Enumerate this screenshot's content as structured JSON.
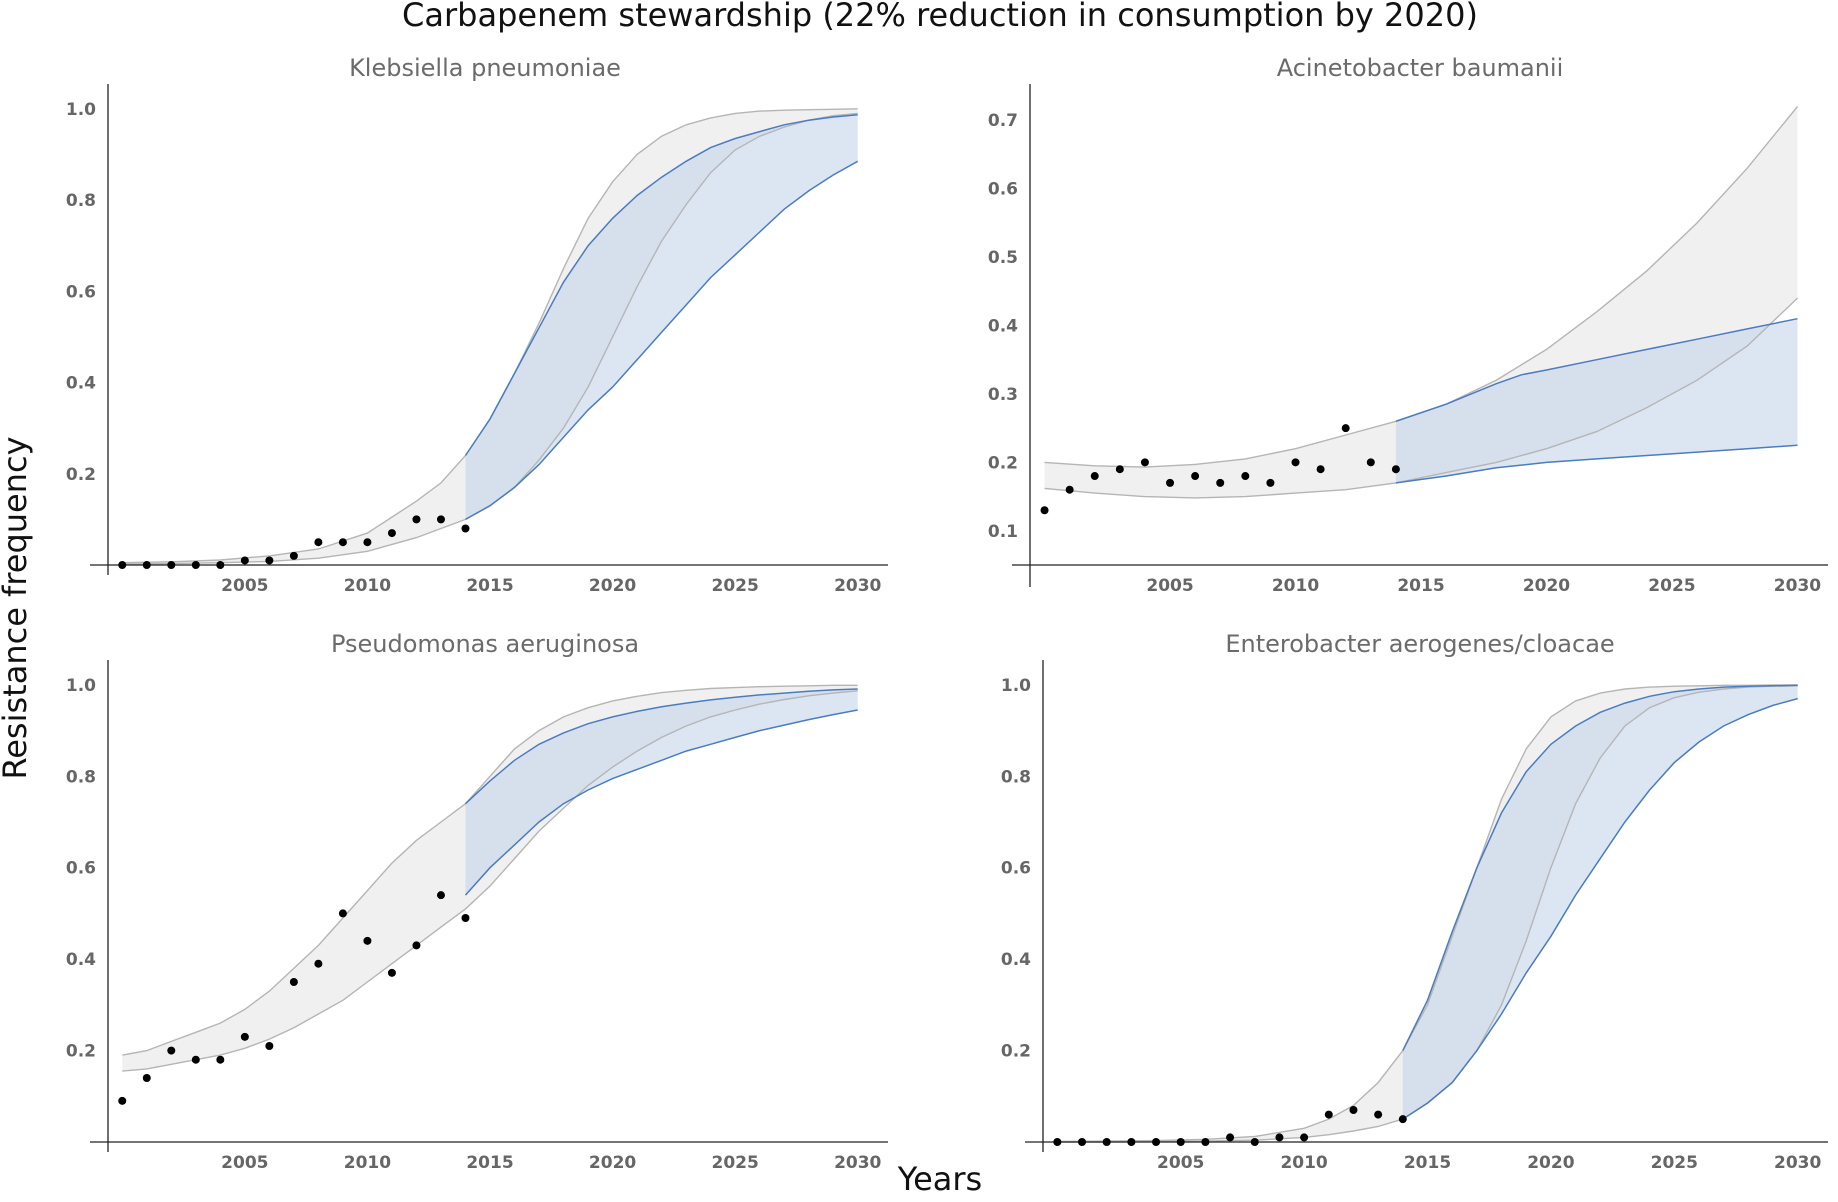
{
  "figure": {
    "title": "Carbapenem stewardship (22% reduction in consumption by 2020)",
    "xlabel": "Years",
    "ylabel": "Resistance frequency"
  },
  "colors": {
    "historical_band_fill": "#f0f0f0",
    "historical_band_line": "#b5b5b5",
    "projection_band_fill": "#c5d5ea",
    "projection_band_line": "#4a7cc0",
    "points": "#000000"
  },
  "chart_data": [
    {
      "type": "line",
      "title": "Klebsiella pneumoniae",
      "xlim": [
        1999.5,
        2030.5
      ],
      "ylim": [
        0,
        1.05
      ],
      "x_ticks": [
        2005,
        2010,
        2015,
        2020,
        2025,
        2030
      ],
      "y_ticks": [
        0.2,
        0.4,
        0.6,
        0.8,
        1.0
      ],
      "observed": {
        "x": [
          2000,
          2001,
          2002,
          2003,
          2004,
          2005,
          2006,
          2007,
          2008,
          2009,
          2010,
          2011,
          2012,
          2013,
          2014
        ],
        "y": [
          0.0,
          0.0,
          0.0,
          0.0,
          0.0,
          0.01,
          0.01,
          0.02,
          0.05,
          0.05,
          0.05,
          0.07,
          0.1,
          0.1,
          0.08
        ]
      },
      "band_without_intervention": {
        "x": [
          2000,
          2002,
          2004,
          2006,
          2008,
          2010,
          2012,
          2013,
          2014,
          2015,
          2016,
          2017,
          2018,
          2019,
          2020,
          2021,
          2022,
          2023,
          2024,
          2025,
          2026,
          2027,
          2028,
          2029,
          2030
        ],
        "upper": [
          0.005,
          0.007,
          0.011,
          0.02,
          0.035,
          0.07,
          0.14,
          0.18,
          0.24,
          0.32,
          0.42,
          0.53,
          0.65,
          0.76,
          0.84,
          0.9,
          0.94,
          0.965,
          0.98,
          0.99,
          0.995,
          0.997,
          0.998,
          0.999,
          1.0
        ],
        "lower": [
          0.002,
          0.003,
          0.005,
          0.008,
          0.015,
          0.03,
          0.06,
          0.08,
          0.1,
          0.13,
          0.17,
          0.23,
          0.3,
          0.39,
          0.5,
          0.61,
          0.71,
          0.79,
          0.86,
          0.91,
          0.94,
          0.96,
          0.975,
          0.985,
          0.99
        ]
      },
      "band_with_intervention": {
        "x": [
          2014,
          2015,
          2016,
          2017,
          2018,
          2019,
          2020,
          2021,
          2022,
          2023,
          2024,
          2025,
          2026,
          2027,
          2028,
          2029,
          2030
        ],
        "upper": [
          0.24,
          0.32,
          0.42,
          0.52,
          0.62,
          0.7,
          0.76,
          0.81,
          0.85,
          0.885,
          0.915,
          0.935,
          0.95,
          0.965,
          0.975,
          0.982,
          0.987
        ],
        "lower": [
          0.1,
          0.13,
          0.17,
          0.22,
          0.28,
          0.34,
          0.39,
          0.45,
          0.51,
          0.57,
          0.63,
          0.68,
          0.73,
          0.78,
          0.82,
          0.855,
          0.885
        ]
      }
    },
    {
      "type": "line",
      "title": "Acinetobacter baumanii",
      "xlim": [
        1999.5,
        2030.5
      ],
      "ylim": [
        0.05,
        0.75
      ],
      "x_ticks": [
        2005,
        2010,
        2015,
        2020,
        2025,
        2030
      ],
      "y_ticks": [
        0.1,
        0.2,
        0.3,
        0.4,
        0.5,
        0.6,
        0.7
      ],
      "observed": {
        "x": [
          2000,
          2001,
          2002,
          2003,
          2004,
          2005,
          2006,
          2007,
          2008,
          2009,
          2010,
          2011,
          2012,
          2013,
          2014
        ],
        "y": [
          0.13,
          0.16,
          0.18,
          0.19,
          0.2,
          0.17,
          0.18,
          0.17,
          0.18,
          0.17,
          0.2,
          0.19,
          0.25,
          0.2,
          0.19
        ]
      },
      "band_without_intervention": {
        "x": [
          2000,
          2002,
          2004,
          2006,
          2008,
          2010,
          2012,
          2014,
          2016,
          2018,
          2020,
          2022,
          2024,
          2026,
          2028,
          2030
        ],
        "upper": [
          0.2,
          0.195,
          0.193,
          0.197,
          0.205,
          0.22,
          0.24,
          0.26,
          0.285,
          0.32,
          0.365,
          0.42,
          0.48,
          0.55,
          0.63,
          0.72
        ],
        "lower": [
          0.162,
          0.155,
          0.15,
          0.148,
          0.15,
          0.155,
          0.16,
          0.17,
          0.185,
          0.2,
          0.22,
          0.245,
          0.28,
          0.32,
          0.37,
          0.44
        ]
      },
      "band_with_intervention": {
        "x": [
          2014,
          2016,
          2018,
          2019,
          2020,
          2022,
          2024,
          2026,
          2028,
          2030
        ],
        "upper": [
          0.26,
          0.285,
          0.315,
          0.328,
          0.335,
          0.35,
          0.365,
          0.38,
          0.395,
          0.41
        ],
        "lower": [
          0.17,
          0.18,
          0.192,
          0.196,
          0.2,
          0.205,
          0.21,
          0.215,
          0.22,
          0.225
        ]
      }
    },
    {
      "type": "line",
      "title": "Pseudomonas aeruginosa",
      "xlim": [
        1999.5,
        2030.5
      ],
      "ylim": [
        0,
        1.05
      ],
      "x_ticks": [
        2005,
        2010,
        2015,
        2020,
        2025,
        2030
      ],
      "y_ticks": [
        0.2,
        0.4,
        0.6,
        0.8,
        1.0
      ],
      "observed": {
        "x": [
          2000,
          2001,
          2002,
          2003,
          2004,
          2005,
          2006,
          2007,
          2008,
          2009,
          2010,
          2011,
          2012,
          2013,
          2014
        ],
        "y": [
          0.09,
          0.14,
          0.2,
          0.18,
          0.18,
          0.23,
          0.21,
          0.35,
          0.39,
          0.5,
          0.44,
          0.37,
          0.43,
          0.54,
          0.49
        ]
      },
      "band_without_intervention": {
        "x": [
          2000,
          2001,
          2002,
          2003,
          2004,
          2005,
          2006,
          2007,
          2008,
          2009,
          2010,
          2011,
          2012,
          2013,
          2014,
          2015,
          2016,
          2017,
          2018,
          2019,
          2020,
          2021,
          2022,
          2023,
          2024,
          2025,
          2026,
          2027,
          2028,
          2029,
          2030
        ],
        "upper": [
          0.19,
          0.2,
          0.22,
          0.24,
          0.26,
          0.29,
          0.33,
          0.38,
          0.43,
          0.49,
          0.55,
          0.61,
          0.66,
          0.7,
          0.74,
          0.8,
          0.86,
          0.9,
          0.93,
          0.95,
          0.965,
          0.975,
          0.983,
          0.988,
          0.992,
          0.994,
          0.996,
          0.997,
          0.998,
          0.999,
          0.999
        ],
        "lower": [
          0.155,
          0.16,
          0.17,
          0.18,
          0.19,
          0.205,
          0.225,
          0.25,
          0.28,
          0.31,
          0.35,
          0.39,
          0.43,
          0.47,
          0.51,
          0.56,
          0.62,
          0.68,
          0.73,
          0.78,
          0.82,
          0.855,
          0.885,
          0.91,
          0.93,
          0.945,
          0.958,
          0.968,
          0.976,
          0.982,
          0.987
        ]
      },
      "band_with_intervention": {
        "x": [
          2014,
          2015,
          2016,
          2017,
          2018,
          2019,
          2020,
          2021,
          2022,
          2023,
          2024,
          2025,
          2026,
          2027,
          2028,
          2029,
          2030
        ],
        "upper": [
          0.74,
          0.79,
          0.835,
          0.87,
          0.895,
          0.915,
          0.93,
          0.942,
          0.952,
          0.96,
          0.967,
          0.973,
          0.978,
          0.982,
          0.986,
          0.989,
          0.991
        ],
        "lower": [
          0.54,
          0.6,
          0.65,
          0.7,
          0.74,
          0.77,
          0.795,
          0.815,
          0.835,
          0.855,
          0.87,
          0.885,
          0.9,
          0.912,
          0.924,
          0.935,
          0.945
        ]
      }
    },
    {
      "type": "line",
      "title": "Enterobacter aerogenes/cloacae",
      "xlim": [
        1999.5,
        2030.5
      ],
      "ylim": [
        0,
        1.05
      ],
      "x_ticks": [
        2005,
        2010,
        2015,
        2020,
        2025,
        2030
      ],
      "y_ticks": [
        0.2,
        0.4,
        0.6,
        0.8,
        1.0
      ],
      "observed": {
        "x": [
          2000,
          2001,
          2002,
          2003,
          2004,
          2005,
          2006,
          2007,
          2008,
          2009,
          2010,
          2011,
          2012,
          2013,
          2014
        ],
        "y": [
          0.0,
          0.0,
          0.0,
          0.0,
          0.0,
          0.0,
          0.0,
          0.01,
          0.0,
          0.01,
          0.01,
          0.06,
          0.07,
          0.06,
          0.05
        ]
      },
      "band_without_intervention": {
        "x": [
          2000,
          2002,
          2004,
          2006,
          2008,
          2010,
          2011,
          2012,
          2013,
          2014,
          2015,
          2016,
          2017,
          2018,
          2019,
          2020,
          2021,
          2022,
          2023,
          2024,
          2025,
          2026,
          2027,
          2028,
          2029,
          2030
        ],
        "upper": [
          0.001,
          0.002,
          0.003,
          0.006,
          0.012,
          0.03,
          0.05,
          0.08,
          0.13,
          0.2,
          0.3,
          0.45,
          0.6,
          0.75,
          0.86,
          0.93,
          0.965,
          0.982,
          0.991,
          0.995,
          0.997,
          0.998,
          0.999,
          0.999,
          1.0,
          1.0
        ],
        "lower": [
          0.0,
          0.0,
          0.001,
          0.002,
          0.004,
          0.01,
          0.016,
          0.024,
          0.034,
          0.05,
          0.085,
          0.13,
          0.2,
          0.3,
          0.44,
          0.6,
          0.74,
          0.84,
          0.91,
          0.95,
          0.972,
          0.984,
          0.991,
          0.995,
          0.997,
          0.998
        ]
      },
      "band_with_intervention": {
        "x": [
          2014,
          2015,
          2016,
          2017,
          2018,
          2019,
          2020,
          2021,
          2022,
          2023,
          2024,
          2025,
          2026,
          2027,
          2028,
          2029,
          2030
        ],
        "upper": [
          0.2,
          0.31,
          0.46,
          0.6,
          0.72,
          0.81,
          0.87,
          0.91,
          0.94,
          0.96,
          0.975,
          0.985,
          0.991,
          0.995,
          0.997,
          0.998,
          0.999
        ],
        "lower": [
          0.05,
          0.085,
          0.13,
          0.2,
          0.28,
          0.37,
          0.45,
          0.54,
          0.62,
          0.7,
          0.77,
          0.83,
          0.875,
          0.91,
          0.935,
          0.955,
          0.97
        ]
      }
    }
  ]
}
